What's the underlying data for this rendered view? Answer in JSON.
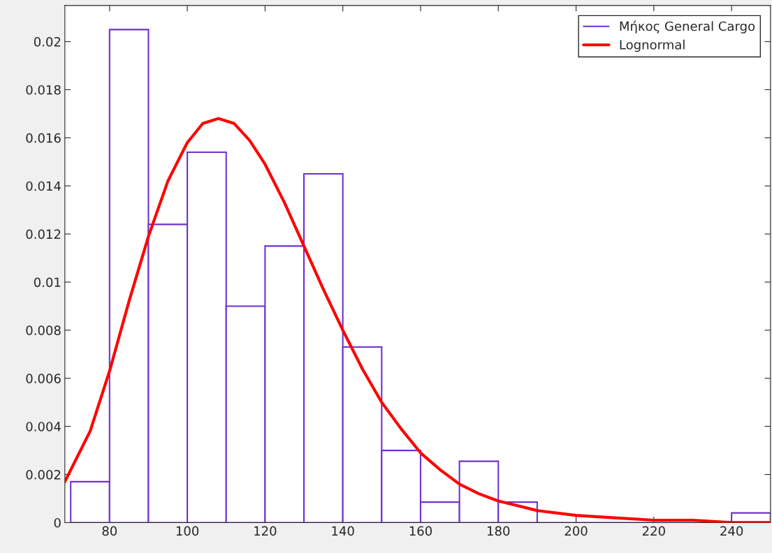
{
  "chart_data": {
    "type": "histogram",
    "series": [
      {
        "name": "Μήκος General Cargo",
        "color": "#7030d0",
        "bins": [
          70,
          80,
          90,
          100,
          110,
          120,
          130,
          140,
          150,
          160,
          170,
          180,
          190,
          200,
          210,
          220,
          230,
          240,
          250
        ],
        "values": [
          0.0017,
          0.0205,
          0.0124,
          0.0154,
          0.009,
          0.0115,
          0.0145,
          0.0073,
          0.003,
          0.00085,
          0.00255,
          0.00085,
          0,
          0,
          0,
          0,
          0,
          0.0004
        ]
      },
      {
        "type": "line",
        "name": "Lognormal",
        "color": "#ff0000",
        "x": [
          68.5,
          75,
          80,
          85,
          90,
          95,
          100,
          104,
          108,
          112,
          116,
          120,
          125,
          130,
          135,
          140,
          145,
          150,
          155,
          160,
          165,
          170,
          175,
          180,
          185,
          190,
          200,
          210,
          220,
          230,
          240,
          250
        ],
        "values": [
          0.0017,
          0.0038,
          0.0063,
          0.0092,
          0.0119,
          0.0142,
          0.0158,
          0.0166,
          0.0168,
          0.0166,
          0.0159,
          0.0149,
          0.0133,
          0.0115,
          0.0097,
          0.008,
          0.0064,
          0.005,
          0.0039,
          0.0029,
          0.0022,
          0.0016,
          0.0012,
          0.0009,
          0.0007,
          0.0005,
          0.0003,
          0.0002,
          0.0001,
          0.0001,
          0,
          0
        ]
      }
    ],
    "xlim": [
      68.5,
      250
    ],
    "xticks": [
      80,
      100,
      120,
      140,
      160,
      180,
      200,
      220,
      240
    ],
    "ylim": [
      0,
      0.0215
    ],
    "yticks": [
      0,
      0.002,
      0.004,
      0.006,
      0.008,
      0.01,
      0.012,
      0.014,
      0.016,
      0.018,
      0.02
    ],
    "grid": false,
    "legend": "top right"
  }
}
